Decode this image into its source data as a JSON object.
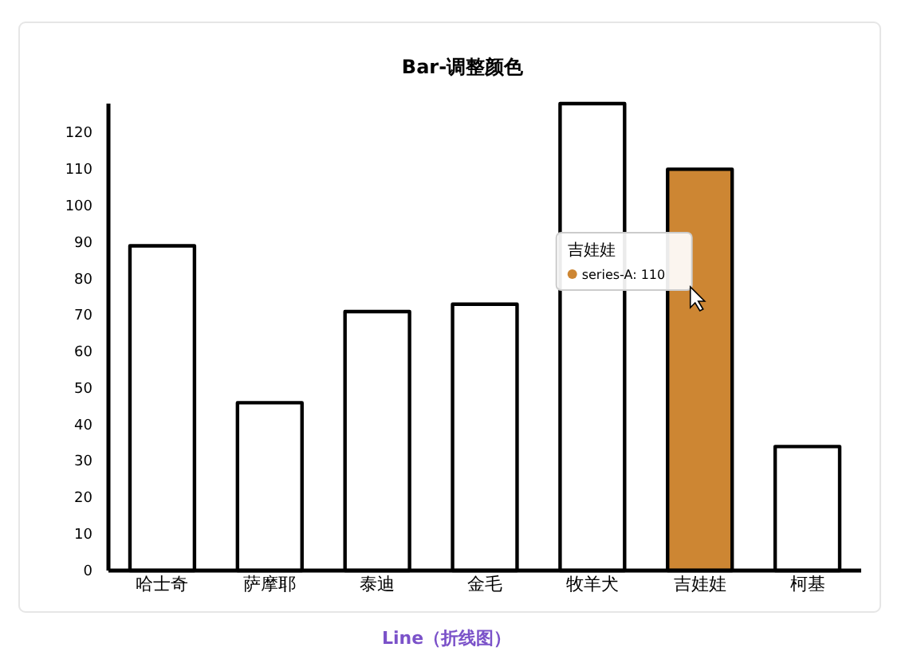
{
  "chart_data": {
    "type": "bar",
    "title": "Bar-调整颜色",
    "categories": [
      "哈士奇",
      "萨摩耶",
      "泰迪",
      "金毛",
      "牧羊犬",
      "吉娃娃",
      "柯基"
    ],
    "series": [
      {
        "values": [
          89,
          46,
          71,
          73,
          128,
          110,
          34
        ],
        "colors": [
          "#ffffff",
          "#ffffff",
          "#ffffff",
          "#ffffff",
          "#ffffff",
          "#cd8633",
          "#ffffff"
        ]
      }
    ],
    "ylim": [
      0,
      128
    ],
    "yticks": [
      0,
      10,
      20,
      30,
      40,
      50,
      60,
      70,
      80,
      90,
      100,
      110,
      120
    ],
    "grid": false,
    "annotations": [
      "吉娃娃",
      "series-A: 110",
      "Line（折线图）"
    ]
  }
}
